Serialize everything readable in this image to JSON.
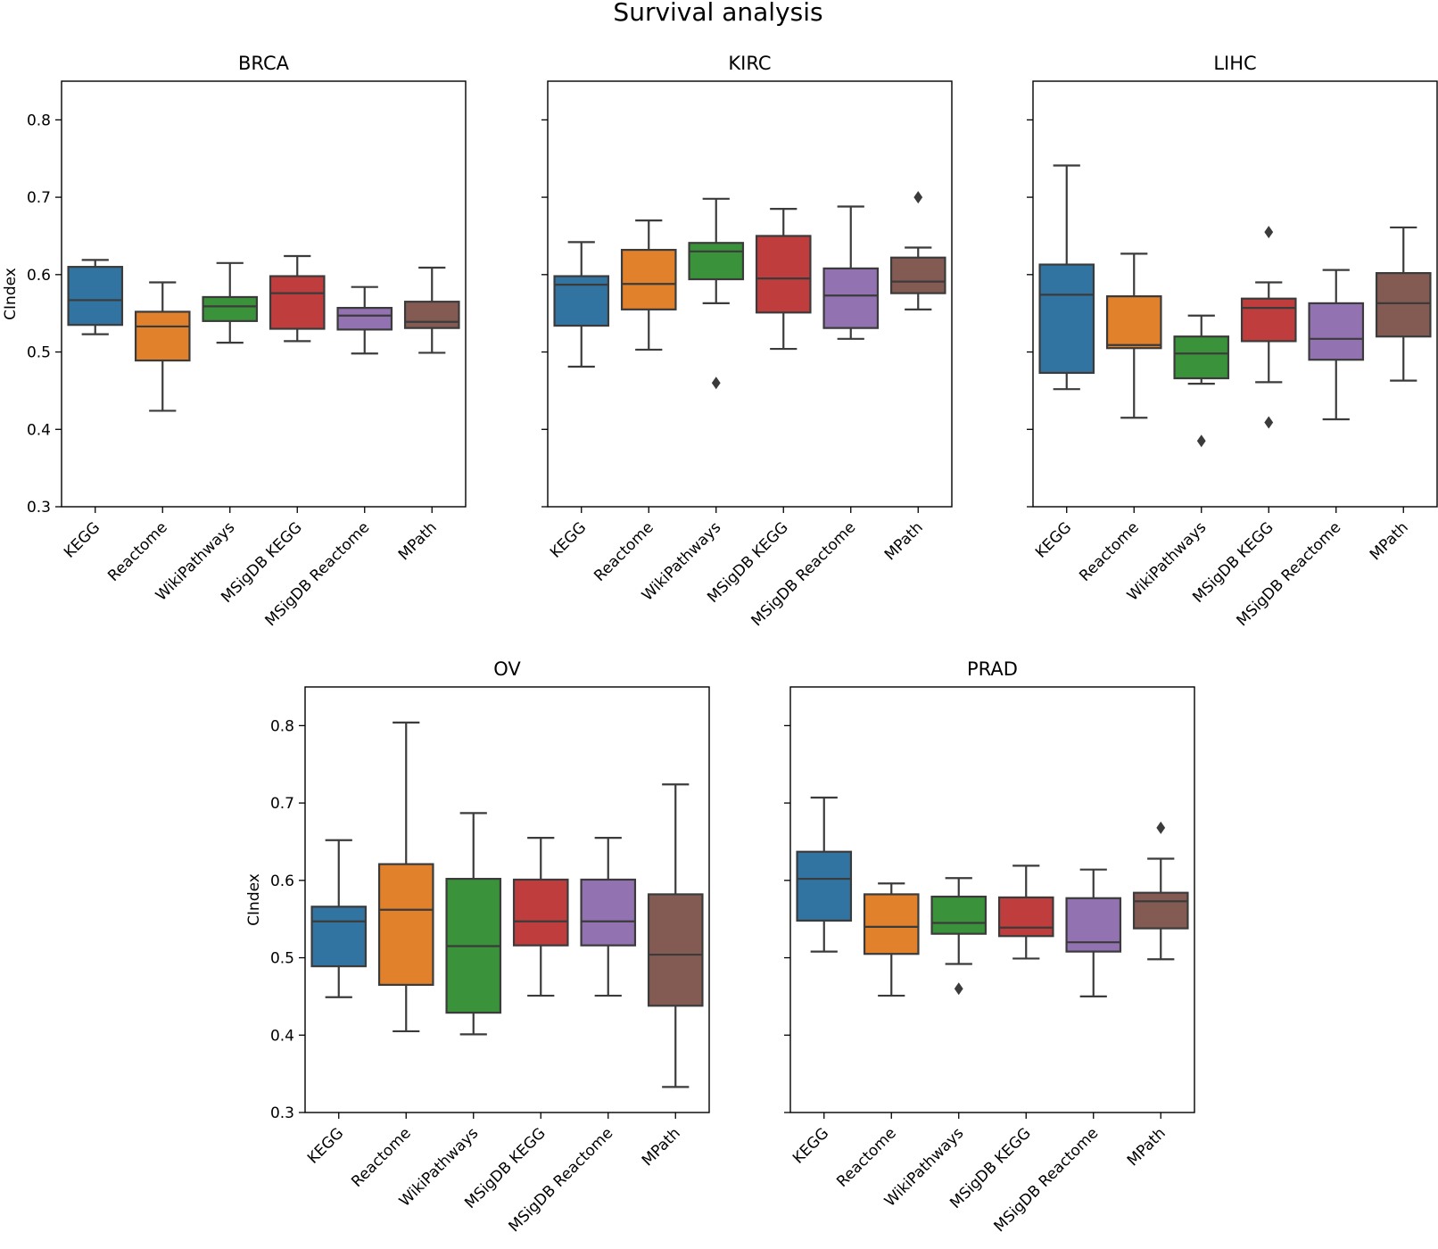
{
  "chart_data": {
    "type": "box",
    "title": "Survival analysis",
    "ylabel": "CIndex",
    "ylim": [
      0.3,
      0.85
    ],
    "yticks": [
      0.3,
      0.4,
      0.5,
      0.6,
      0.7,
      0.8
    ],
    "ytick_labels": [
      "0.3",
      "0.4",
      "0.5",
      "0.6",
      "0.7",
      "0.8"
    ],
    "categories": [
      "KEGG",
      "Reactome",
      "WikiPathways",
      "MSigDB KEGG",
      "MSigDB Reactome",
      "MPath"
    ],
    "colors": [
      "#3274a1",
      "#e1812c",
      "#3a923a",
      "#c03d3e",
      "#9372b2",
      "#845b53"
    ],
    "panels": [
      {
        "title": "BRCA",
        "boxes": [
          {
            "q1": 0.535,
            "median": 0.567,
            "q3": 0.61,
            "whislo": 0.523,
            "whishi": 0.619,
            "fliers": []
          },
          {
            "q1": 0.489,
            "median": 0.533,
            "q3": 0.552,
            "whislo": 0.424,
            "whishi": 0.59,
            "fliers": []
          },
          {
            "q1": 0.54,
            "median": 0.559,
            "q3": 0.571,
            "whislo": 0.512,
            "whishi": 0.615,
            "fliers": []
          },
          {
            "q1": 0.53,
            "median": 0.576,
            "q3": 0.598,
            "whislo": 0.514,
            "whishi": 0.624,
            "fliers": []
          },
          {
            "q1": 0.529,
            "median": 0.547,
            "q3": 0.557,
            "whislo": 0.498,
            "whishi": 0.584,
            "fliers": []
          },
          {
            "q1": 0.531,
            "median": 0.539,
            "q3": 0.565,
            "whislo": 0.499,
            "whishi": 0.609,
            "fliers": []
          }
        ]
      },
      {
        "title": "KIRC",
        "boxes": [
          {
            "q1": 0.534,
            "median": 0.587,
            "q3": 0.598,
            "whislo": 0.481,
            "whishi": 0.642,
            "fliers": []
          },
          {
            "q1": 0.555,
            "median": 0.588,
            "q3": 0.632,
            "whislo": 0.503,
            "whishi": 0.67,
            "fliers": []
          },
          {
            "q1": 0.594,
            "median": 0.63,
            "q3": 0.641,
            "whislo": 0.563,
            "whishi": 0.698,
            "fliers": [
              0.46
            ]
          },
          {
            "q1": 0.551,
            "median": 0.595,
            "q3": 0.65,
            "whislo": 0.504,
            "whishi": 0.685,
            "fliers": []
          },
          {
            "q1": 0.531,
            "median": 0.573,
            "q3": 0.608,
            "whislo": 0.517,
            "whishi": 0.688,
            "fliers": []
          },
          {
            "q1": 0.576,
            "median": 0.591,
            "q3": 0.622,
            "whislo": 0.555,
            "whishi": 0.635,
            "fliers": [
              0.7
            ]
          }
        ]
      },
      {
        "title": "LIHC",
        "boxes": [
          {
            "q1": 0.473,
            "median": 0.574,
            "q3": 0.613,
            "whislo": 0.452,
            "whishi": 0.741,
            "fliers": []
          },
          {
            "q1": 0.505,
            "median": 0.509,
            "q3": 0.572,
            "whislo": 0.415,
            "whishi": 0.627,
            "fliers": []
          },
          {
            "q1": 0.466,
            "median": 0.498,
            "q3": 0.52,
            "whislo": 0.459,
            "whishi": 0.547,
            "fliers": [
              0.385
            ]
          },
          {
            "q1": 0.514,
            "median": 0.557,
            "q3": 0.569,
            "whislo": 0.461,
            "whishi": 0.59,
            "fliers": [
              0.409,
              0.655
            ]
          },
          {
            "q1": 0.49,
            "median": 0.517,
            "q3": 0.563,
            "whislo": 0.413,
            "whishi": 0.606,
            "fliers": []
          },
          {
            "q1": 0.52,
            "median": 0.563,
            "q3": 0.602,
            "whislo": 0.463,
            "whishi": 0.661,
            "fliers": []
          }
        ]
      },
      {
        "title": "OV",
        "boxes": [
          {
            "q1": 0.489,
            "median": 0.547,
            "q3": 0.566,
            "whislo": 0.449,
            "whishi": 0.652,
            "fliers": []
          },
          {
            "q1": 0.465,
            "median": 0.562,
            "q3": 0.621,
            "whislo": 0.405,
            "whishi": 0.804,
            "fliers": []
          },
          {
            "q1": 0.429,
            "median": 0.515,
            "q3": 0.602,
            "whislo": 0.401,
            "whishi": 0.687,
            "fliers": []
          },
          {
            "q1": 0.516,
            "median": 0.547,
            "q3": 0.601,
            "whislo": 0.451,
            "whishi": 0.655,
            "fliers": []
          },
          {
            "q1": 0.516,
            "median": 0.547,
            "q3": 0.601,
            "whislo": 0.451,
            "whishi": 0.655,
            "fliers": []
          },
          {
            "q1": 0.438,
            "median": 0.504,
            "q3": 0.582,
            "whislo": 0.333,
            "whishi": 0.724,
            "fliers": []
          }
        ]
      },
      {
        "title": "PRAD",
        "boxes": [
          {
            "q1": 0.548,
            "median": 0.602,
            "q3": 0.637,
            "whislo": 0.508,
            "whishi": 0.707,
            "fliers": []
          },
          {
            "q1": 0.505,
            "median": 0.54,
            "q3": 0.582,
            "whislo": 0.451,
            "whishi": 0.596,
            "fliers": []
          },
          {
            "q1": 0.531,
            "median": 0.545,
            "q3": 0.579,
            "whislo": 0.492,
            "whishi": 0.603,
            "fliers": [
              0.46
            ]
          },
          {
            "q1": 0.528,
            "median": 0.539,
            "q3": 0.578,
            "whislo": 0.499,
            "whishi": 0.619,
            "fliers": []
          },
          {
            "q1": 0.508,
            "median": 0.52,
            "q3": 0.577,
            "whislo": 0.45,
            "whishi": 0.614,
            "fliers": []
          },
          {
            "q1": 0.538,
            "median": 0.573,
            "q3": 0.584,
            "whislo": 0.498,
            "whishi": 0.628,
            "fliers": [
              0.668
            ]
          }
        ]
      }
    ]
  }
}
